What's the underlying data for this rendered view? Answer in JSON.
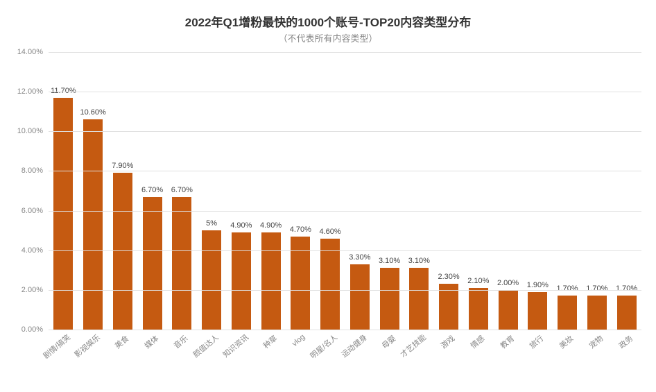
{
  "chart": {
    "type": "bar",
    "title": "2022年Q1增粉最快的1000个账号-TOP20内容类型分布",
    "subtitle": "（不代表所有内容类型）",
    "title_fontsize": 17,
    "title_color": "#333333",
    "subtitle_fontsize": 13,
    "subtitle_color": "#888888",
    "background_color": "#ffffff",
    "grid_color": "#e0e0e0",
    "bar_color": "#c55a11",
    "bar_width": 0.66,
    "axis_label_color": "#888888",
    "axis_label_fontsize": 11,
    "data_label_fontsize": 11,
    "data_label_color": "#444444",
    "x_label_rotation": -40,
    "y": {
      "min": 0,
      "max": 14,
      "tick_step": 2,
      "ticks": [
        "0.00%",
        "2.00%",
        "4.00%",
        "6.00%",
        "8.00%",
        "10.00%",
        "12.00%",
        "14.00%"
      ]
    },
    "categories": [
      "剧情/搞笑",
      "影视娱乐",
      "美食",
      "媒体",
      "音乐",
      "颜值达人",
      "知识资讯",
      "种草",
      "vlog",
      "明星/名人",
      "运动健身",
      "母婴",
      "才艺技能",
      "游戏",
      "情感",
      "教育",
      "旅行",
      "美妆",
      "宠物",
      "政务"
    ],
    "values": [
      11.7,
      10.6,
      7.9,
      6.7,
      6.7,
      5.0,
      4.9,
      4.9,
      4.7,
      4.6,
      3.3,
      3.1,
      3.1,
      2.3,
      2.1,
      2.0,
      1.9,
      1.7,
      1.7,
      1.7
    ],
    "value_labels": [
      "11.70%",
      "10.60%",
      "7.90%",
      "6.70%",
      "6.70%",
      "5%",
      "4.90%",
      "4.90%",
      "4.70%",
      "4.60%",
      "3.30%",
      "3.10%",
      "3.10%",
      "2.30%",
      "2.10%",
      "2.00%",
      "1.90%",
      "1.70%",
      "1.70%",
      "1.70%"
    ]
  }
}
